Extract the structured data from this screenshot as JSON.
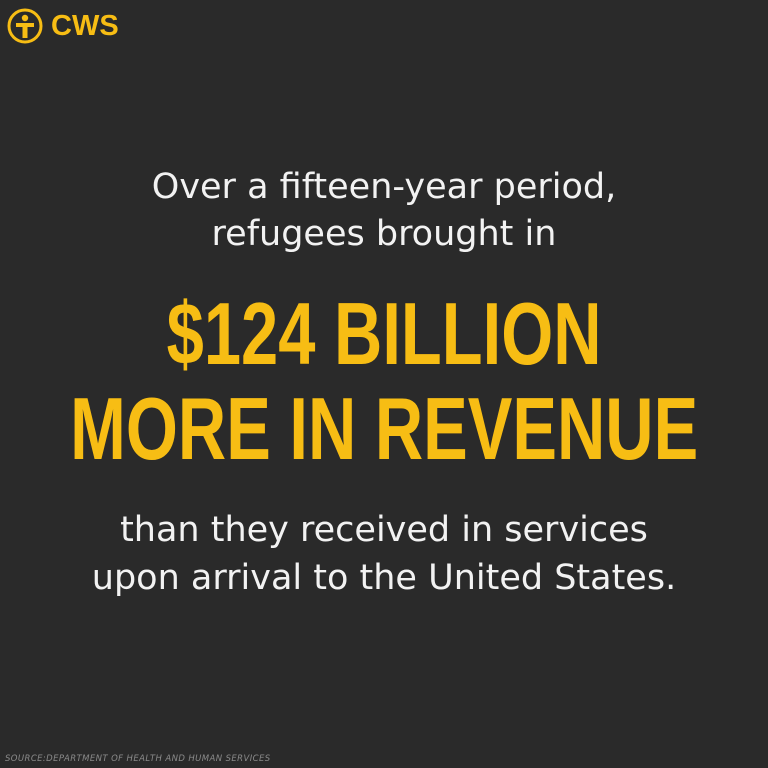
{
  "logo": {
    "text": "CWS",
    "icon": "cws-person-circle-icon",
    "color": "#f7bd14"
  },
  "intro": [
    "Over a fifteen-year period,",
    "refugees brought in"
  ],
  "headline": [
    "$124 BILLION",
    "MORE IN REVENUE"
  ],
  "outro": [
    "than they received in services",
    "upon arrival to the United States."
  ],
  "source": "SOURCE:DEPARTMENT OF HEALTH AND HUMAN SERVICES",
  "colors": {
    "background": "#2a2a2a",
    "accent": "#f7bd14",
    "text": "#f2f2f2"
  }
}
